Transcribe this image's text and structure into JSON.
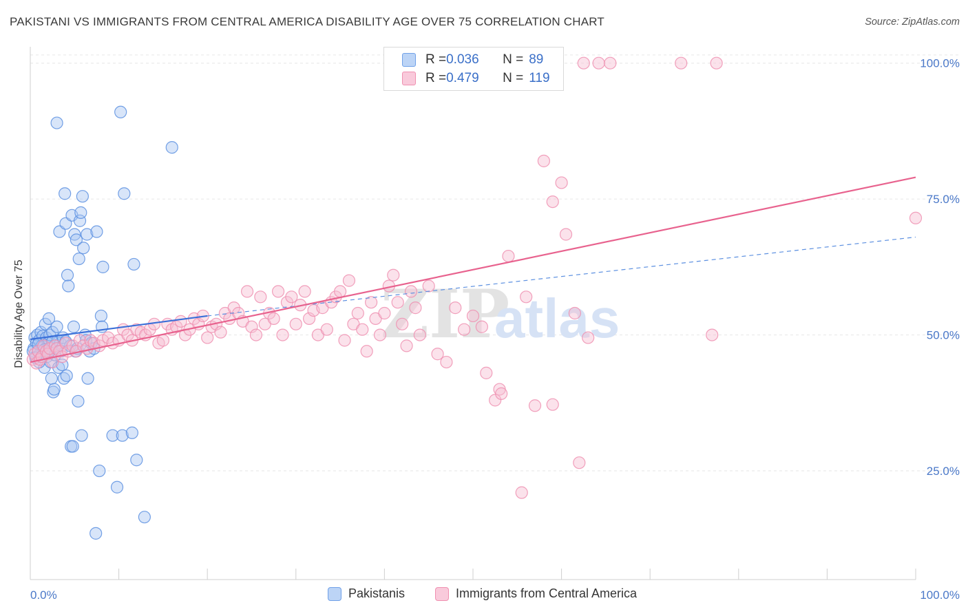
{
  "title": "PAKISTANI VS IMMIGRANTS FROM CENTRAL AMERICA DISABILITY AGE OVER 75 CORRELATION CHART",
  "source": "Source: ZipAtlas.com",
  "watermark": {
    "zip": "ZIP",
    "atlas": "atlas"
  },
  "legend": {
    "rows": [
      {
        "r_label": "R = ",
        "r_value": "0.036",
        "n_label": "N = ",
        "n_value": "89",
        "color": "#6fa0e8"
      },
      {
        "r_label": "R = ",
        "r_value": "0.479",
        "n_label": "N = ",
        "n_value": "119",
        "color": "#f08fb0"
      }
    ]
  },
  "bottom_legend": [
    "Pakistanis",
    "Immigrants from Central America"
  ],
  "colors": {
    "blue": "#5b8fe0",
    "pink": "#ef88aa",
    "blue_line": "#3a6fd8",
    "pink_line": "#e8628e",
    "tick_text": "#4a78c8"
  },
  "chart_data": {
    "type": "scatter",
    "title": "PAKISTANI VS IMMIGRANTS FROM CENTRAL AMERICA DISABILITY AGE OVER 75 CORRELATION CHART",
    "xlabel": "",
    "ylabel": "Disability Age Over 75",
    "xlim": [
      0,
      100
    ],
    "ylim": [
      5,
      103
    ],
    "x_tick_labels": [
      {
        "value": 0,
        "label": "0.0%"
      },
      {
        "value": 100,
        "label": "100.0%"
      }
    ],
    "y_tick_labels": [
      {
        "value": 25,
        "label": "25.0%"
      },
      {
        "value": 50,
        "label": "50.0%"
      },
      {
        "value": 75,
        "label": "75.0%"
      },
      {
        "value": 100,
        "label": "100.0%"
      }
    ],
    "grid": true,
    "legend_position": "top-center",
    "series": [
      {
        "name": "Pakistanis",
        "color": "#5b8fe0",
        "trend": {
          "x0": 0,
          "y0": 49.2,
          "x1": 20,
          "y1": 53.5,
          "dashed_to_x": 100,
          "dashed_to_y": 68
        },
        "points": [
          [
            0.4,
            47.5
          ],
          [
            0.5,
            49.5
          ],
          [
            0.6,
            46
          ],
          [
            0.7,
            48.5
          ],
          [
            0.8,
            50
          ],
          [
            0.9,
            47
          ],
          [
            1.0,
            49
          ],
          [
            1.1,
            46.5
          ],
          [
            1.2,
            50.5
          ],
          [
            1.3,
            48
          ],
          [
            1.4,
            49.8
          ],
          [
            1.5,
            47.8
          ],
          [
            1.6,
            44
          ],
          [
            1.7,
            52
          ],
          [
            1.8,
            49.5
          ],
          [
            1.9,
            46
          ],
          [
            2.0,
            48.5
          ],
          [
            2.1,
            53
          ],
          [
            2.2,
            50
          ],
          [
            2.3,
            45
          ],
          [
            2.4,
            42
          ],
          [
            2.5,
            50.5
          ],
          [
            2.6,
            39.5
          ],
          [
            2.7,
            40
          ],
          [
            2.8,
            48
          ],
          [
            2.9,
            47.5
          ],
          [
            3.0,
            51.5
          ],
          [
            3.1,
            49
          ],
          [
            3.2,
            44
          ],
          [
            3.3,
            69
          ],
          [
            3.4,
            48.5
          ],
          [
            3.5,
            47
          ],
          [
            3.6,
            44.5
          ],
          [
            3.7,
            49.5
          ],
          [
            3.8,
            42
          ],
          [
            3.9,
            76
          ],
          [
            4.0,
            70.5
          ],
          [
            4.1,
            42.5
          ],
          [
            4.2,
            61
          ],
          [
            4.3,
            59
          ],
          [
            4.5,
            48
          ],
          [
            4.6,
            29.5
          ],
          [
            4.7,
            72
          ],
          [
            4.8,
            29.5
          ],
          [
            4.9,
            51.5
          ],
          [
            5.0,
            68.5
          ],
          [
            5.1,
            47
          ],
          [
            5.2,
            67.5
          ],
          [
            5.3,
            47.5
          ],
          [
            5.4,
            37.8
          ],
          [
            5.5,
            64
          ],
          [
            5.6,
            71
          ],
          [
            5.7,
            72.5
          ],
          [
            5.8,
            31.5
          ],
          [
            5.9,
            75.5
          ],
          [
            6.0,
            66
          ],
          [
            6.2,
            50
          ],
          [
            6.3,
            49
          ],
          [
            6.4,
            68.5
          ],
          [
            6.5,
            42
          ],
          [
            6.7,
            47
          ],
          [
            6.9,
            48.5
          ],
          [
            7.2,
            47.5
          ],
          [
            7.5,
            69
          ],
          [
            7.8,
            25
          ],
          [
            8.0,
            53.5
          ],
          [
            8.1,
            51.5
          ],
          [
            8.2,
            62.5
          ],
          [
            9.3,
            31.5
          ],
          [
            9.8,
            22
          ],
          [
            10.2,
            91
          ],
          [
            10.4,
            31.5
          ],
          [
            10.6,
            76
          ],
          [
            11.5,
            32
          ],
          [
            11.7,
            63
          ],
          [
            12.0,
            27
          ],
          [
            12.9,
            16.5
          ],
          [
            16.0,
            84.5
          ],
          [
            7.4,
            13.5
          ],
          [
            1.0,
            45
          ],
          [
            2.5,
            48.8
          ],
          [
            3.0,
            89
          ],
          [
            0.3,
            47
          ],
          [
            0.9,
            48.3
          ],
          [
            1.6,
            47.3
          ],
          [
            2.1,
            46.8
          ],
          [
            2.8,
            46.3
          ],
          [
            4.0,
            48.8
          ],
          [
            0.6,
            45.8
          ]
        ]
      },
      {
        "name": "Immigrants from Central America",
        "color": "#ef88aa",
        "trend": {
          "x0": 0,
          "y0": 45,
          "x1": 100,
          "y1": 79
        },
        "points": [
          [
            0.3,
            45.5
          ],
          [
            0.5,
            46.5
          ],
          [
            0.7,
            44.8
          ],
          [
            0.9,
            47
          ],
          [
            1.1,
            45.5
          ],
          [
            1.3,
            46
          ],
          [
            1.5,
            48
          ],
          [
            1.8,
            47
          ],
          [
            2.0,
            46.5
          ],
          [
            2.2,
            47.5
          ],
          [
            2.5,
            45
          ],
          [
            2.8,
            48
          ],
          [
            3.0,
            47.5
          ],
          [
            3.3,
            47
          ],
          [
            3.6,
            46
          ],
          [
            4.0,
            48.5
          ],
          [
            4.3,
            47
          ],
          [
            4.8,
            48
          ],
          [
            5.2,
            47
          ],
          [
            5.6,
            49
          ],
          [
            6.0,
            48
          ],
          [
            6.4,
            47.5
          ],
          [
            6.8,
            49
          ],
          [
            7.2,
            48.5
          ],
          [
            7.8,
            48
          ],
          [
            8.2,
            49
          ],
          [
            8.8,
            49.5
          ],
          [
            9.3,
            48.5
          ],
          [
            10.0,
            49
          ],
          [
            10.5,
            51
          ],
          [
            11.0,
            50
          ],
          [
            11.5,
            49
          ],
          [
            12.0,
            51
          ],
          [
            12.5,
            50.5
          ],
          [
            13.0,
            50
          ],
          [
            13.5,
            51
          ],
          [
            14.0,
            52
          ],
          [
            14.5,
            48.5
          ],
          [
            15.0,
            49
          ],
          [
            15.5,
            52
          ],
          [
            16.0,
            51
          ],
          [
            16.5,
            51.5
          ],
          [
            17.0,
            52.5
          ],
          [
            17.5,
            50
          ],
          [
            18.0,
            51
          ],
          [
            18.5,
            53
          ],
          [
            19.0,
            52
          ],
          [
            19.5,
            53.5
          ],
          [
            20.0,
            49.5
          ],
          [
            20.5,
            51.5
          ],
          [
            21.0,
            52
          ],
          [
            21.5,
            50.5
          ],
          [
            22.0,
            54
          ],
          [
            22.5,
            53
          ],
          [
            23.0,
            55
          ],
          [
            23.5,
            54
          ],
          [
            24.0,
            52.5
          ],
          [
            24.5,
            58
          ],
          [
            25.0,
            51.5
          ],
          [
            25.5,
            50
          ],
          [
            26.0,
            57
          ],
          [
            26.5,
            52
          ],
          [
            27.0,
            54
          ],
          [
            27.5,
            53
          ],
          [
            28.0,
            58
          ],
          [
            28.5,
            50
          ],
          [
            29.0,
            56
          ],
          [
            29.5,
            57
          ],
          [
            30.0,
            52
          ],
          [
            30.5,
            55.5
          ],
          [
            31.0,
            58
          ],
          [
            31.5,
            53
          ],
          [
            32.0,
            54.5
          ],
          [
            32.5,
            50
          ],
          [
            33.0,
            55
          ],
          [
            33.5,
            51
          ],
          [
            34.0,
            56
          ],
          [
            34.5,
            57
          ],
          [
            35.0,
            58
          ],
          [
            35.5,
            49
          ],
          [
            36.0,
            60
          ],
          [
            36.5,
            52
          ],
          [
            37.0,
            54
          ],
          [
            37.5,
            51
          ],
          [
            38.0,
            47
          ],
          [
            38.5,
            56
          ],
          [
            39.0,
            53
          ],
          [
            39.5,
            50
          ],
          [
            40.0,
            54
          ],
          [
            40.5,
            59
          ],
          [
            41.0,
            61
          ],
          [
            41.5,
            56
          ],
          [
            42.0,
            52
          ],
          [
            42.5,
            48
          ],
          [
            43.0,
            58
          ],
          [
            43.5,
            55
          ],
          [
            44.0,
            50
          ],
          [
            45.0,
            59
          ],
          [
            46.0,
            46.5
          ],
          [
            47.0,
            45
          ],
          [
            48.0,
            55
          ],
          [
            49.0,
            51
          ],
          [
            50.0,
            53.5
          ],
          [
            51.0,
            51.5
          ],
          [
            51.5,
            43
          ],
          [
            52.5,
            38
          ],
          [
            53.0,
            40
          ],
          [
            54.0,
            64.5
          ],
          [
            55.5,
            21
          ],
          [
            56.0,
            57
          ],
          [
            58.0,
            82
          ],
          [
            59.0,
            74.5
          ],
          [
            60.0,
            78
          ],
          [
            61.5,
            54
          ],
          [
            63.0,
            49.5
          ],
          [
            57.0,
            37
          ],
          [
            62.0,
            26.5
          ],
          [
            60.5,
            68.5
          ],
          [
            100.0,
            71.5
          ]
        ]
      },
      {
        "name": "Immigrants from Central America (top row)",
        "color": "#ef88aa",
        "points": [
          [
            59.5,
            100
          ],
          [
            62.5,
            100
          ],
          [
            64.2,
            100
          ],
          [
            65.5,
            100
          ],
          [
            73.5,
            100
          ],
          [
            77.5,
            100
          ],
          [
            77.0,
            50.0
          ],
          [
            59.0,
            37.2
          ],
          [
            53.2,
            39.2
          ]
        ]
      }
    ]
  }
}
